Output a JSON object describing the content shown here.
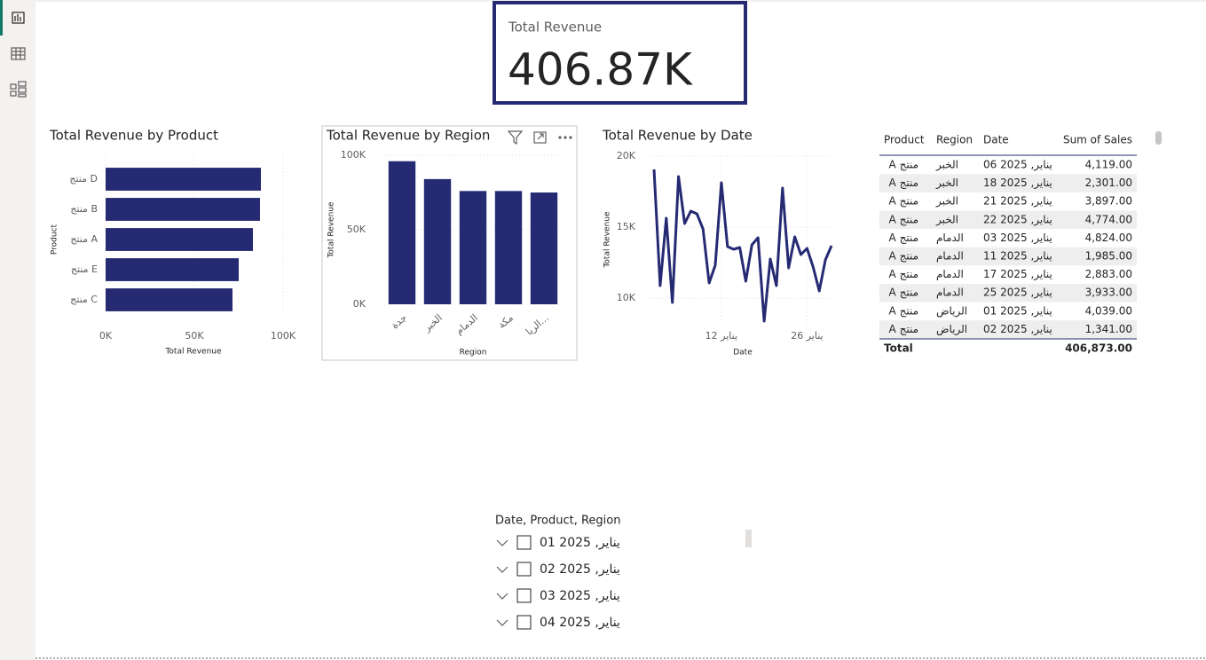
{
  "card": {
    "label": "Total Revenue",
    "value": "406.87K"
  },
  "chart_data": [
    {
      "type": "barh",
      "title": "Total Revenue by Product",
      "categories": [
        "منتج D",
        "منتج B",
        "منتج A",
        "منتج E",
        "منتج C"
      ],
      "values": [
        87500,
        87000,
        83000,
        75000,
        71500
      ],
      "color": "#252a73",
      "xlim": [
        0,
        100000
      ],
      "xticks": [
        {
          "value": 0,
          "label": "0K"
        },
        {
          "value": 50000,
          "label": "50K"
        },
        {
          "value": 100000,
          "label": "100K"
        }
      ],
      "x_label": "Total Revenue",
      "y_label": "Product",
      "grid": true
    },
    {
      "type": "bar",
      "title": "Total Revenue by Region",
      "categories": [
        "جدة",
        "الخبر",
        "الدمام",
        "مكة",
        "الريا..."
      ],
      "values": [
        96000,
        84000,
        76000,
        76000,
        75000
      ],
      "color": "#252a73",
      "ylim": [
        0,
        100000
      ],
      "yticks": [
        {
          "value": 0,
          "label": "0K"
        },
        {
          "value": 50000,
          "label": "50K"
        },
        {
          "value": 100000,
          "label": "100K"
        }
      ],
      "x_label": "Region",
      "y_label": "Total Revenue",
      "grid": true
    },
    {
      "type": "line",
      "title": "Total Revenue by Date",
      "x": [
        1,
        2,
        3,
        4,
        5,
        6,
        7,
        8,
        9,
        10,
        11,
        12,
        13,
        14,
        15,
        16,
        17,
        18,
        19,
        20,
        21,
        22,
        23,
        24,
        25,
        26,
        27,
        28,
        29,
        30
      ],
      "values": [
        19060,
        10875,
        15625,
        9690,
        18560,
        15250,
        16125,
        15940,
        14875,
        11060,
        12310,
        18125,
        13625,
        13440,
        13560,
        11190,
        13750,
        14250,
        8375,
        12750,
        10875,
        17750,
        12125,
        14310,
        13060,
        13500,
        12190,
        10500,
        12690,
        13690
      ],
      "color": "#252a73",
      "xlim": [
        1,
        30
      ],
      "xticks": [
        {
          "value": 12,
          "label": "12 يناير"
        },
        {
          "value": 26,
          "label": "26 يناير"
        }
      ],
      "ylim": [
        8000,
        20000
      ],
      "yticks": [
        {
          "value": 10000,
          "label": "10K"
        },
        {
          "value": 15000,
          "label": "15K"
        },
        {
          "value": 20000,
          "label": "20K"
        }
      ],
      "x_label": "Date",
      "y_label": "Total Revenue",
      "grid": true
    }
  ],
  "table": {
    "columns": [
      "Product",
      "Region",
      "Date",
      "Sum of Sales"
    ],
    "rows": [
      [
        "منتج A",
        "الخبر",
        "يناير, 2025 06",
        "4,119.00"
      ],
      [
        "منتج A",
        "الخبر",
        "يناير, 2025 18",
        "2,301.00"
      ],
      [
        "منتج A",
        "الخبر",
        "يناير, 2025 21",
        "3,897.00"
      ],
      [
        "منتج A",
        "الخبر",
        "يناير, 2025 22",
        "4,774.00"
      ],
      [
        "منتج A",
        "الدمام",
        "يناير, 2025 03",
        "4,824.00"
      ],
      [
        "منتج A",
        "الدمام",
        "يناير, 2025 11",
        "1,985.00"
      ],
      [
        "منتج A",
        "الدمام",
        "يناير, 2025 17",
        "2,883.00"
      ],
      [
        "منتج A",
        "الدمام",
        "يناير, 2025 25",
        "3,933.00"
      ],
      [
        "منتج A",
        "الرياض",
        "يناير, 2025 01",
        "4,039.00"
      ],
      [
        "منتج A",
        "الرياض",
        "يناير, 2025 02",
        "1,341.00"
      ]
    ],
    "total": [
      "Total",
      "406,873.00"
    ]
  },
  "slicer": {
    "title": "Date, Product, Region",
    "items": [
      "يناير, 2025 01",
      "يناير, 2025 02",
      "يناير, 2025 03",
      "يناير, 2025 04"
    ]
  }
}
